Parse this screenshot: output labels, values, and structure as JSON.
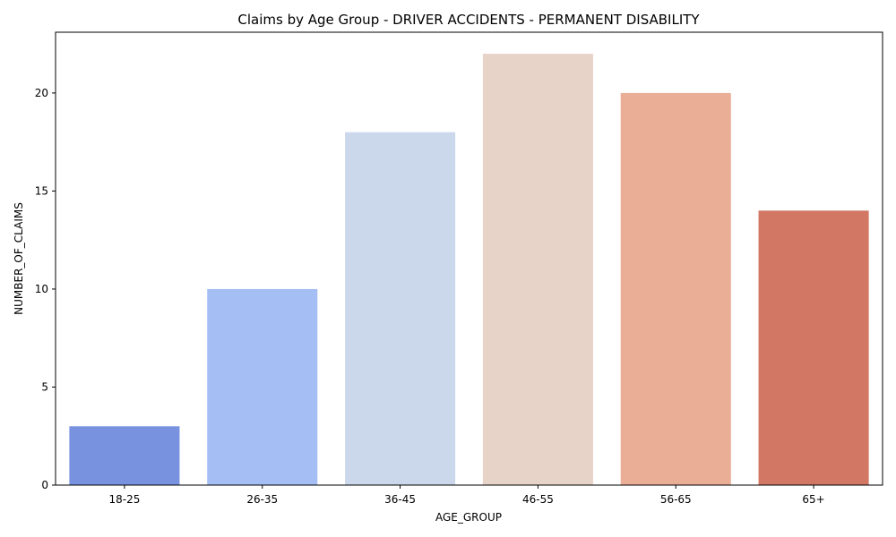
{
  "chart_data": {
    "type": "bar",
    "title": "Claims by Age Group - DRIVER ACCIDENTS - PERMANENT DISABILITY",
    "xlabel": "AGE_GROUP",
    "ylabel": "NUMBER_OF_CLAIMS",
    "categories": [
      "18-25",
      "26-35",
      "36-45",
      "46-55",
      "56-65",
      "65+"
    ],
    "values": [
      3,
      10,
      18,
      22,
      20,
      14
    ],
    "colors": [
      "#7892e0",
      "#a5bff5",
      "#cbd8ec",
      "#e8d3c8",
      "#eaae97",
      "#d17764"
    ],
    "ylim": [
      0,
      23.1
    ],
    "yticks": [
      0,
      5,
      10,
      15,
      20
    ],
    "grid": false,
    "legend": "none"
  }
}
